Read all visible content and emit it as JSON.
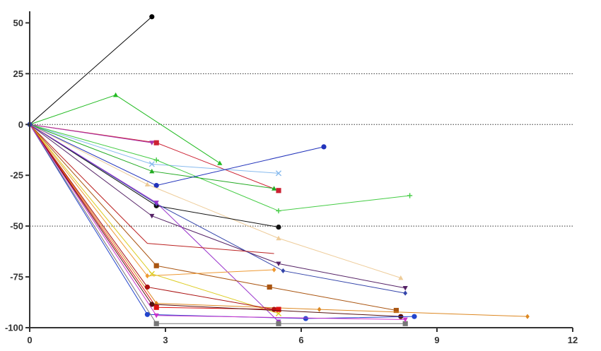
{
  "chart_data": {
    "type": "line",
    "title": "",
    "xlabel": "",
    "ylabel": "",
    "xlim": [
      0,
      12
    ],
    "ylim": [
      -100,
      55
    ],
    "x_ticks": [
      {
        "value": 0,
        "label": "0"
      },
      {
        "value": 3,
        "label": "3"
      },
      {
        "value": 6,
        "label": "6"
      },
      {
        "value": 9,
        "label": "9"
      },
      {
        "value": 12,
        "label": "12"
      }
    ],
    "y_ticks": [
      {
        "value": 50,
        "label": "50"
      },
      {
        "value": 25,
        "label": "25"
      },
      {
        "value": 0,
        "label": "0"
      },
      {
        "value": -25,
        "label": "-25"
      },
      {
        "value": -50,
        "label": "-50"
      },
      {
        "value": -75,
        "label": "-75"
      },
      {
        "value": -100,
        "label": "-100"
      }
    ],
    "reference_lines": [
      25,
      0,
      -50
    ],
    "grid": false,
    "legend": "none",
    "series": [
      {
        "color": "#000000",
        "marker": "circle",
        "points": [
          [
            0,
            0
          ],
          [
            2.7,
            53
          ]
        ]
      },
      {
        "color": "#22bb22",
        "marker": "triangle",
        "points": [
          [
            0,
            0
          ],
          [
            1.9,
            14.5
          ],
          [
            4.2,
            -19
          ]
        ]
      },
      {
        "color": "#cc2233",
        "marker": "square",
        "points": [
          [
            0,
            0
          ],
          [
            2.8,
            -9
          ],
          [
            5.5,
            -32.5
          ]
        ]
      },
      {
        "color": "#aa33aa",
        "marker": "triangle-down",
        "points": [
          [
            0,
            0
          ],
          [
            2.7,
            -9
          ]
        ]
      },
      {
        "color": "#88bbee",
        "marker": "x",
        "points": [
          [
            0,
            0
          ],
          [
            2.7,
            -19.5
          ],
          [
            5.5,
            -24
          ]
        ]
      },
      {
        "color": "#44cc44",
        "marker": "plus",
        "points": [
          [
            0,
            0
          ],
          [
            2.8,
            -17.5
          ],
          [
            5.5,
            -42.5
          ],
          [
            8.4,
            -35
          ]
        ]
      },
      {
        "color": "#22aa22",
        "marker": "triangle",
        "points": [
          [
            0,
            0
          ],
          [
            2.7,
            -23
          ],
          [
            5.4,
            -31.5
          ]
        ]
      },
      {
        "color": "#2233bb",
        "marker": "circle",
        "points": [
          [
            0,
            0
          ],
          [
            2.8,
            -30
          ],
          [
            6.5,
            -11
          ]
        ]
      },
      {
        "color": "#eecc99",
        "marker": "triangle",
        "points": [
          [
            0,
            0
          ],
          [
            2.6,
            -29.5
          ],
          [
            5.5,
            -56
          ],
          [
            8.2,
            -75.5
          ]
        ]
      },
      {
        "color": "#111111",
        "marker": "circle",
        "points": [
          [
            0,
            0
          ],
          [
            2.8,
            -40
          ],
          [
            5.5,
            -50.5
          ]
        ]
      },
      {
        "color": "#552266",
        "marker": "triangle-down",
        "points": [
          [
            0,
            0
          ],
          [
            2.7,
            -45
          ],
          [
            5.5,
            -68.5
          ],
          [
            8.3,
            -80.5
          ]
        ]
      },
      {
        "color": "#3344aa",
        "marker": "diamond",
        "points": [
          [
            0,
            0
          ],
          [
            2.8,
            -39
          ],
          [
            5.6,
            -72
          ],
          [
            8.3,
            -83
          ]
        ]
      },
      {
        "color": "#9933cc",
        "marker": "triangle-down",
        "points": [
          [
            0,
            0
          ],
          [
            2.8,
            -38.5
          ],
          [
            5.5,
            -97
          ]
        ]
      },
      {
        "color": "#bb2222",
        "marker": "none",
        "points": [
          [
            0,
            0
          ],
          [
            2.6,
            -58.5
          ],
          [
            5.4,
            -63.5
          ]
        ]
      },
      {
        "color": "#aa5511",
        "marker": "square",
        "points": [
          [
            0,
            0
          ],
          [
            2.8,
            -69.5
          ],
          [
            5.3,
            -80
          ],
          [
            8.1,
            -91.5
          ]
        ]
      },
      {
        "color": "#ee9933",
        "marker": "diamond",
        "points": [
          [
            0,
            0
          ],
          [
            2.6,
            -74.5
          ],
          [
            5.4,
            -71.5
          ]
        ]
      },
      {
        "color": "#ddcc22",
        "marker": "x",
        "points": [
          [
            0,
            0
          ],
          [
            2.7,
            -73.5
          ],
          [
            5.5,
            -93
          ]
        ]
      },
      {
        "color": "#dd8822",
        "marker": "diamond",
        "points": [
          [
            0,
            0
          ],
          [
            2.8,
            -88
          ],
          [
            6.4,
            -91
          ],
          [
            11,
            -94.5
          ]
        ]
      },
      {
        "color": "#aa1111",
        "marker": "circle",
        "points": [
          [
            0,
            0
          ],
          [
            2.6,
            -80
          ],
          [
            5.4,
            -91
          ]
        ]
      },
      {
        "color": "#dd1111",
        "marker": "square",
        "points": [
          [
            0,
            0
          ],
          [
            2.8,
            -90
          ],
          [
            5.5,
            -91
          ]
        ]
      },
      {
        "color": "#551111",
        "marker": "circle",
        "points": [
          [
            0,
            0
          ],
          [
            2.7,
            -88.5
          ],
          [
            8.2,
            -94.5
          ]
        ]
      },
      {
        "color": "#2244cc",
        "marker": "circle",
        "points": [
          [
            0,
            0
          ],
          [
            2.6,
            -93.5
          ],
          [
            6.1,
            -95.5
          ],
          [
            8.5,
            -94.5
          ]
        ]
      },
      {
        "color": "#777777",
        "marker": "square",
        "points": [
          [
            0,
            0
          ],
          [
            2.8,
            -98
          ],
          [
            5.5,
            -98
          ],
          [
            8.3,
            -98
          ]
        ]
      },
      {
        "color": "#cc33cc",
        "marker": "triangle-down",
        "points": [
          [
            0,
            0
          ],
          [
            2.8,
            -94
          ],
          [
            8.3,
            -96
          ]
        ]
      }
    ]
  }
}
